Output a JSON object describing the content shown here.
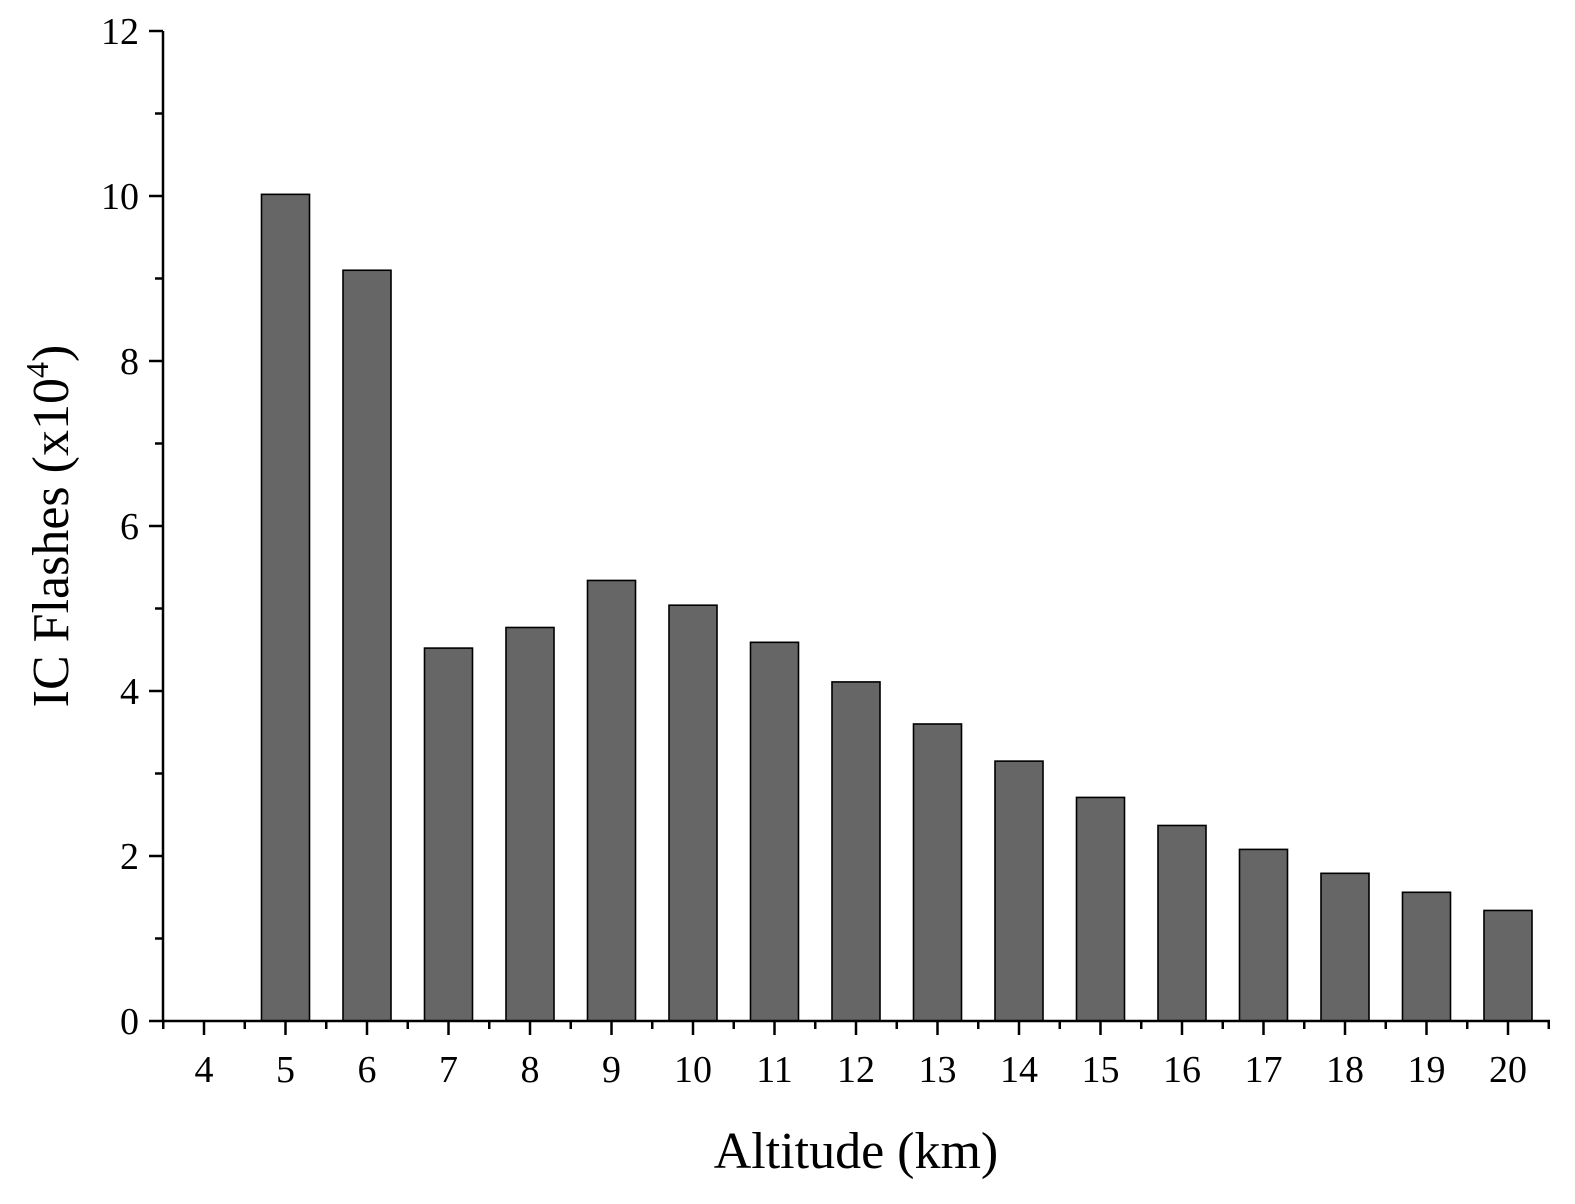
{
  "chart_data": {
    "type": "bar",
    "title": "",
    "xlabel": "Altitude (km)",
    "ylabel": {
      "main": "IC Flashes (x10",
      "superscript": "4",
      "close": ")"
    },
    "categories": [
      "4",
      "5",
      "6",
      "7",
      "8",
      "9",
      "10",
      "11",
      "12",
      "13",
      "14",
      "15",
      "16",
      "17",
      "18",
      "19",
      "20"
    ],
    "values": [
      0,
      10.02,
      9.1,
      4.52,
      4.77,
      5.34,
      5.04,
      4.59,
      4.11,
      3.6,
      3.15,
      2.71,
      2.37,
      2.08,
      1.79,
      1.56,
      1.34
    ],
    "ylim": [
      0,
      12
    ],
    "yticks": [
      "0",
      "2",
      "4",
      "6",
      "8",
      "10",
      "12"
    ],
    "bar_color": "#666666",
    "grid": false,
    "legend": "none"
  }
}
